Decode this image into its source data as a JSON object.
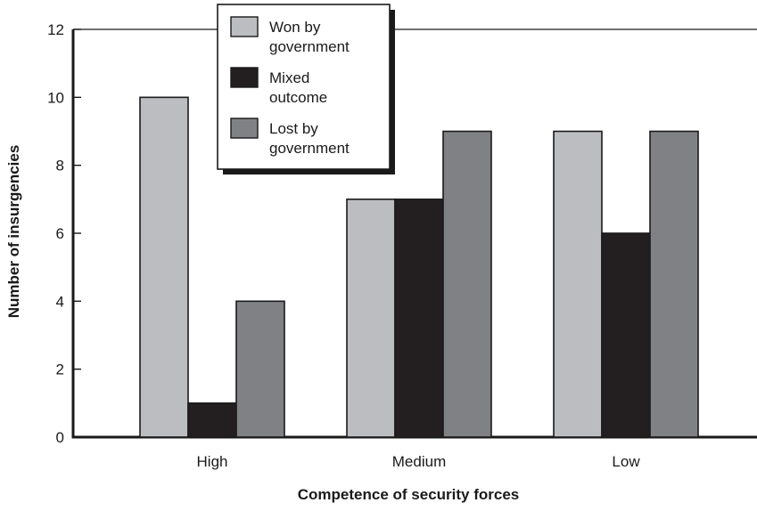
{
  "chart_data": {
    "type": "bar",
    "xlabel": "Competence of security forces",
    "ylabel": "Number of insurgencies",
    "categories": [
      "High",
      "Medium",
      "Low"
    ],
    "series": [
      {
        "name": "Won by government",
        "name_lines": [
          "Won by",
          "government"
        ],
        "color": "#bcbdc1",
        "values": [
          10,
          7,
          9
        ]
      },
      {
        "name": "Mixed outcome",
        "name_lines": [
          "Mixed",
          "outcome"
        ],
        "color": "#231f20",
        "values": [
          1,
          7,
          6
        ]
      },
      {
        "name": "Lost by government",
        "name_lines": [
          "Lost by",
          "government"
        ],
        "color": "#808184",
        "values": [
          4,
          9,
          9
        ]
      }
    ],
    "ylim": [
      0,
      12
    ],
    "yticks": [
      0,
      2,
      4,
      6,
      8,
      10,
      12
    ],
    "grid": "top border line only",
    "legend_position": "top-left"
  }
}
